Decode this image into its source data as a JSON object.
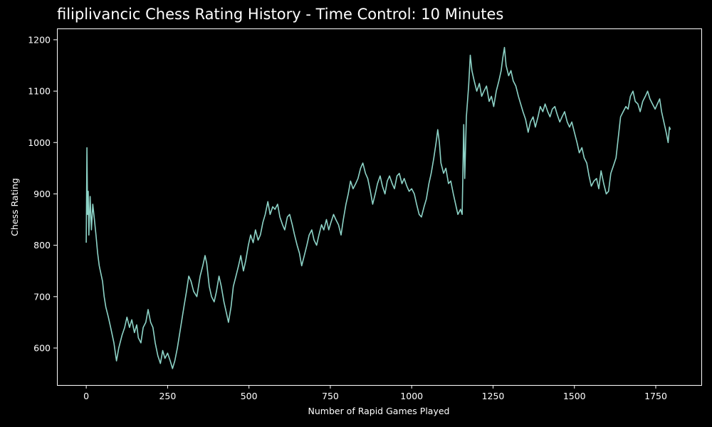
{
  "chart_data": {
    "type": "line",
    "title": "filiplivancic Chess Rating History - Time Control: 10 Minutes",
    "xlabel": "Number of Rapid Games Played",
    "ylabel": "Chess Rating",
    "xlim": [
      -90,
      1890
    ],
    "ylim": [
      528,
      1222
    ],
    "x_ticks": [
      0,
      250,
      500,
      750,
      1000,
      1250,
      1500,
      1750
    ],
    "y_ticks": [
      600,
      700,
      800,
      900,
      1000,
      1100,
      1200
    ],
    "grid": false,
    "background": "#000000",
    "series": [
      {
        "color": "#8dd3c7",
        "points": [
          [
            0,
            805
          ],
          [
            2,
            990
          ],
          [
            4,
            860
          ],
          [
            6,
            905
          ],
          [
            8,
            820
          ],
          [
            12,
            895
          ],
          [
            16,
            830
          ],
          [
            20,
            880
          ],
          [
            25,
            850
          ],
          [
            30,
            820
          ],
          [
            35,
            785
          ],
          [
            40,
            760
          ],
          [
            50,
            730
          ],
          [
            55,
            700
          ],
          [
            60,
            680
          ],
          [
            68,
            660
          ],
          [
            75,
            640
          ],
          [
            85,
            610
          ],
          [
            93,
            575
          ],
          [
            100,
            600
          ],
          [
            110,
            625
          ],
          [
            118,
            640
          ],
          [
            125,
            660
          ],
          [
            133,
            640
          ],
          [
            140,
            655
          ],
          [
            148,
            630
          ],
          [
            155,
            645
          ],
          [
            160,
            620
          ],
          [
            168,
            610
          ],
          [
            175,
            640
          ],
          [
            183,
            650
          ],
          [
            190,
            675
          ],
          [
            198,
            650
          ],
          [
            205,
            640
          ],
          [
            212,
            610
          ],
          [
            220,
            585
          ],
          [
            228,
            570
          ],
          [
            235,
            595
          ],
          [
            242,
            580
          ],
          [
            250,
            590
          ],
          [
            258,
            575
          ],
          [
            265,
            560
          ],
          [
            272,
            575
          ],
          [
            280,
            600
          ],
          [
            290,
            640
          ],
          [
            300,
            680
          ],
          [
            308,
            710
          ],
          [
            315,
            740
          ],
          [
            322,
            730
          ],
          [
            330,
            710
          ],
          [
            340,
            700
          ],
          [
            350,
            740
          ],
          [
            358,
            760
          ],
          [
            365,
            780
          ],
          [
            370,
            765
          ],
          [
            378,
            720
          ],
          [
            385,
            700
          ],
          [
            393,
            690
          ],
          [
            400,
            710
          ],
          [
            408,
            740
          ],
          [
            415,
            720
          ],
          [
            423,
            690
          ],
          [
            430,
            670
          ],
          [
            437,
            650
          ],
          [
            445,
            680
          ],
          [
            452,
            720
          ],
          [
            460,
            740
          ],
          [
            468,
            760
          ],
          [
            475,
            780
          ],
          [
            483,
            750
          ],
          [
            490,
            770
          ],
          [
            498,
            800
          ],
          [
            505,
            820
          ],
          [
            513,
            805
          ],
          [
            520,
            830
          ],
          [
            528,
            810
          ],
          [
            535,
            820
          ],
          [
            543,
            845
          ],
          [
            550,
            860
          ],
          [
            558,
            885
          ],
          [
            565,
            860
          ],
          [
            573,
            875
          ],
          [
            580,
            870
          ],
          [
            588,
            880
          ],
          [
            595,
            855
          ],
          [
            603,
            840
          ],
          [
            610,
            830
          ],
          [
            618,
            855
          ],
          [
            625,
            860
          ],
          [
            633,
            840
          ],
          [
            640,
            820
          ],
          [
            648,
            800
          ],
          [
            655,
            785
          ],
          [
            662,
            760
          ],
          [
            670,
            780
          ],
          [
            678,
            800
          ],
          [
            685,
            820
          ],
          [
            693,
            830
          ],
          [
            700,
            810
          ],
          [
            708,
            800
          ],
          [
            715,
            820
          ],
          [
            723,
            840
          ],
          [
            730,
            830
          ],
          [
            738,
            850
          ],
          [
            745,
            830
          ],
          [
            752,
            845
          ],
          [
            760,
            860
          ],
          [
            767,
            850
          ],
          [
            775,
            840
          ],
          [
            783,
            820
          ],
          [
            790,
            850
          ],
          [
            798,
            880
          ],
          [
            805,
            900
          ],
          [
            812,
            925
          ],
          [
            820,
            910
          ],
          [
            828,
            920
          ],
          [
            835,
            930
          ],
          [
            843,
            950
          ],
          [
            850,
            960
          ],
          [
            858,
            940
          ],
          [
            865,
            930
          ],
          [
            873,
            905
          ],
          [
            880,
            880
          ],
          [
            888,
            900
          ],
          [
            895,
            920
          ],
          [
            903,
            935
          ],
          [
            910,
            915
          ],
          [
            918,
            900
          ],
          [
            925,
            925
          ],
          [
            932,
            935
          ],
          [
            940,
            920
          ],
          [
            947,
            910
          ],
          [
            955,
            935
          ],
          [
            962,
            940
          ],
          [
            970,
            920
          ],
          [
            977,
            930
          ],
          [
            985,
            915
          ],
          [
            992,
            905
          ],
          [
            1000,
            910
          ],
          [
            1008,
            900
          ],
          [
            1015,
            880
          ],
          [
            1023,
            860
          ],
          [
            1030,
            855
          ],
          [
            1038,
            875
          ],
          [
            1045,
            890
          ],
          [
            1053,
            920
          ],
          [
            1060,
            940
          ],
          [
            1068,
            970
          ],
          [
            1075,
            1000
          ],
          [
            1080,
            1025
          ],
          [
            1085,
            1000
          ],
          [
            1090,
            960
          ],
          [
            1098,
            940
          ],
          [
            1105,
            950
          ],
          [
            1113,
            920
          ],
          [
            1120,
            925
          ],
          [
            1128,
            900
          ],
          [
            1135,
            880
          ],
          [
            1142,
            860
          ],
          [
            1150,
            870
          ],
          [
            1155,
            860
          ],
          [
            1160,
            1035
          ],
          [
            1163,
            930
          ],
          [
            1168,
            1050
          ],
          [
            1175,
            1110
          ],
          [
            1180,
            1170
          ],
          [
            1185,
            1140
          ],
          [
            1192,
            1120
          ],
          [
            1200,
            1100
          ],
          [
            1208,
            1115
          ],
          [
            1215,
            1090
          ],
          [
            1222,
            1100
          ],
          [
            1230,
            1110
          ],
          [
            1238,
            1080
          ],
          [
            1245,
            1090
          ],
          [
            1252,
            1070
          ],
          [
            1260,
            1100
          ],
          [
            1268,
            1120
          ],
          [
            1275,
            1140
          ],
          [
            1280,
            1165
          ],
          [
            1285,
            1185
          ],
          [
            1290,
            1150
          ],
          [
            1298,
            1130
          ],
          [
            1305,
            1140
          ],
          [
            1312,
            1120
          ],
          [
            1320,
            1110
          ],
          [
            1328,
            1090
          ],
          [
            1335,
            1075
          ],
          [
            1342,
            1060
          ],
          [
            1350,
            1045
          ],
          [
            1358,
            1020
          ],
          [
            1365,
            1040
          ],
          [
            1373,
            1050
          ],
          [
            1380,
            1030
          ],
          [
            1388,
            1050
          ],
          [
            1395,
            1070
          ],
          [
            1403,
            1060
          ],
          [
            1410,
            1075
          ],
          [
            1418,
            1060
          ],
          [
            1425,
            1050
          ],
          [
            1432,
            1065
          ],
          [
            1440,
            1070
          ],
          [
            1447,
            1055
          ],
          [
            1455,
            1040
          ],
          [
            1462,
            1050
          ],
          [
            1470,
            1060
          ],
          [
            1478,
            1040
          ],
          [
            1485,
            1030
          ],
          [
            1492,
            1040
          ],
          [
            1500,
            1020
          ],
          [
            1508,
            1000
          ],
          [
            1515,
            980
          ],
          [
            1523,
            990
          ],
          [
            1530,
            970
          ],
          [
            1538,
            960
          ],
          [
            1545,
            935
          ],
          [
            1552,
            915
          ],
          [
            1560,
            925
          ],
          [
            1568,
            930
          ],
          [
            1575,
            910
          ],
          [
            1582,
            945
          ],
          [
            1590,
            920
          ],
          [
            1598,
            900
          ],
          [
            1605,
            905
          ],
          [
            1612,
            940
          ],
          [
            1620,
            955
          ],
          [
            1628,
            970
          ],
          [
            1635,
            1010
          ],
          [
            1642,
            1050
          ],
          [
            1650,
            1060
          ],
          [
            1658,
            1070
          ],
          [
            1665,
            1065
          ],
          [
            1672,
            1090
          ],
          [
            1680,
            1100
          ],
          [
            1687,
            1080
          ],
          [
            1695,
            1075
          ],
          [
            1702,
            1060
          ],
          [
            1710,
            1080
          ],
          [
            1718,
            1090
          ],
          [
            1725,
            1100
          ],
          [
            1732,
            1085
          ],
          [
            1740,
            1075
          ],
          [
            1748,
            1065
          ],
          [
            1755,
            1075
          ],
          [
            1762,
            1085
          ],
          [
            1768,
            1060
          ],
          [
            1775,
            1040
          ],
          [
            1782,
            1020
          ],
          [
            1788,
            1000
          ],
          [
            1792,
            1030
          ],
          [
            1795,
            1025
          ]
        ]
      }
    ]
  }
}
